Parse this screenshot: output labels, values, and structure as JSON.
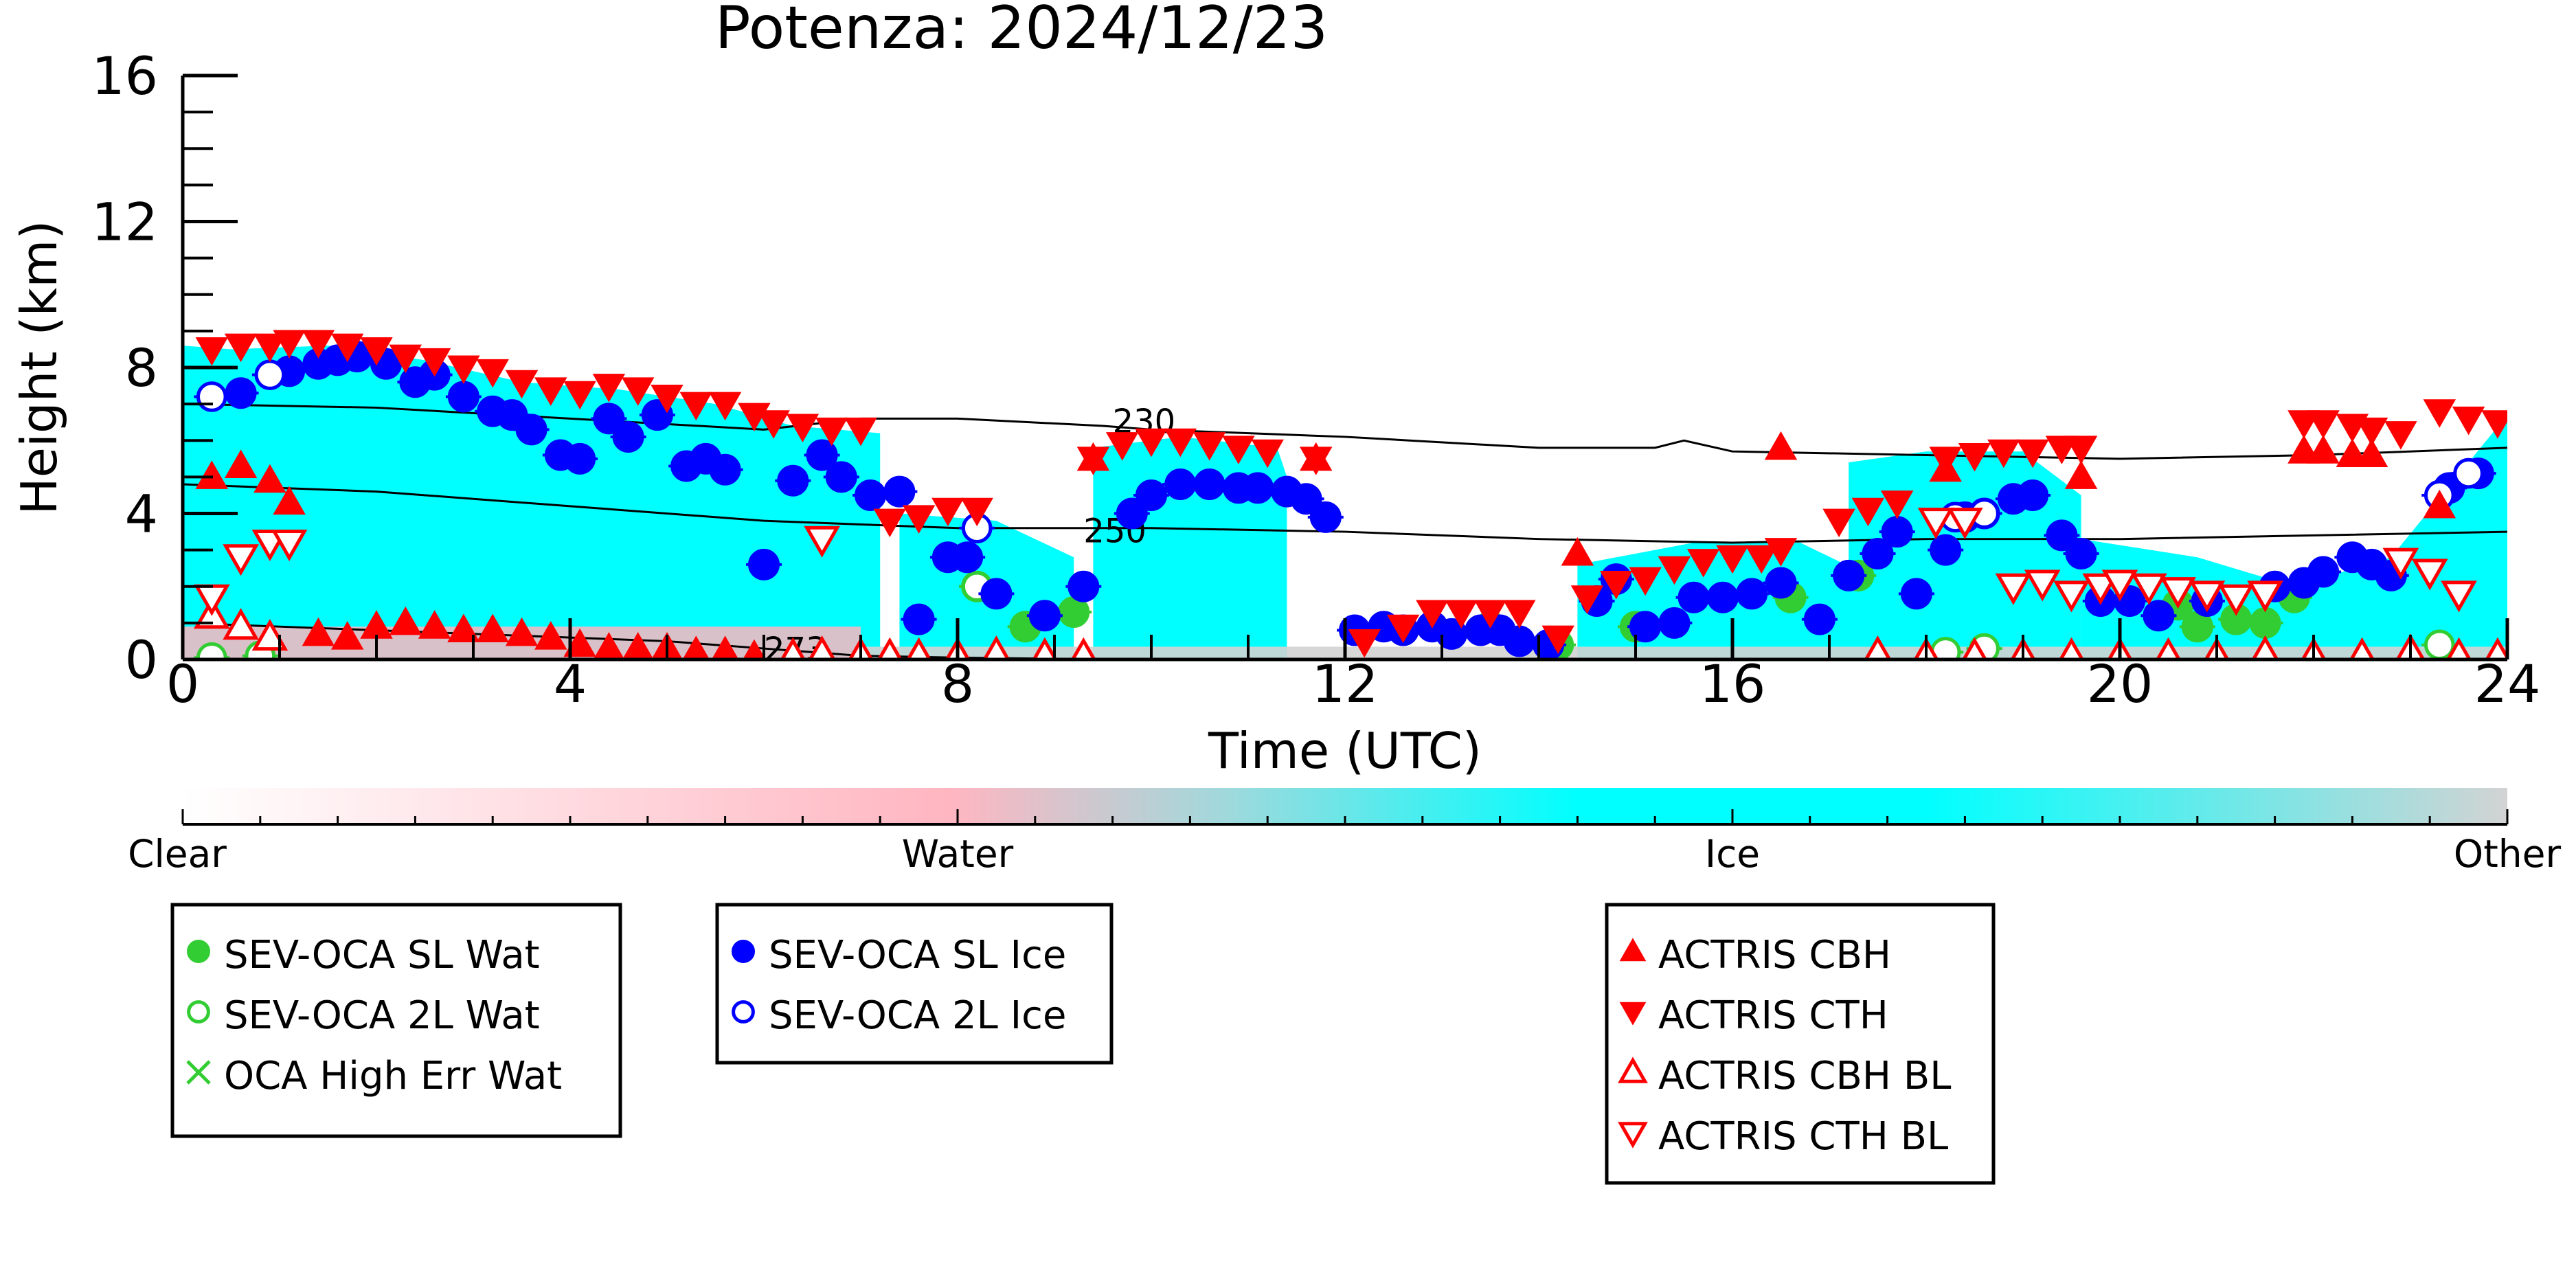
{
  "chart_data": {
    "type": "scatter",
    "title": "Potenza: 2024/12/23",
    "xlabel": "Time (UTC)",
    "ylabel": "Height (km)",
    "xlim": [
      0,
      24
    ],
    "ylim": [
      0,
      16
    ],
    "x_ticks": [
      0,
      4,
      8,
      12,
      16,
      20,
      24
    ],
    "y_ticks": [
      0,
      4,
      8,
      12,
      16
    ],
    "grid": false,
    "colors": {
      "clear": "#ffffff",
      "water": "#ffb6c1",
      "ice": "#00ffff",
      "other": "#d3d3d3",
      "sl_wat": "#32cd32",
      "sl_ice": "#0000ff",
      "actris": "#ff0000",
      "isotherm": "#000000"
    },
    "colorbar": {
      "labels": [
        "Clear",
        "Water",
        "Ice",
        "Other"
      ]
    },
    "isotherms": [
      {
        "label": "230",
        "x": [
          0,
          2,
          4,
          6,
          7,
          8,
          9.5,
          10,
          12,
          14,
          15.2,
          15.5,
          16,
          18,
          20,
          22,
          24
        ],
        "y": [
          7.0,
          6.9,
          6.6,
          6.3,
          6.6,
          6.6,
          6.4,
          6.3,
          6.1,
          5.8,
          5.8,
          6.0,
          5.7,
          5.6,
          5.5,
          5.6,
          5.8
        ]
      },
      {
        "label": "250",
        "x": [
          0,
          2,
          4,
          6,
          8,
          10,
          12,
          14,
          16,
          18,
          20,
          22,
          24
        ],
        "y": [
          4.8,
          4.6,
          4.2,
          3.8,
          3.6,
          3.6,
          3.5,
          3.3,
          3.2,
          3.3,
          3.3,
          3.4,
          3.5
        ]
      },
      {
        "label": "273",
        "x": [
          0,
          1,
          2,
          3,
          4,
          5,
          6,
          6.5,
          7,
          8,
          9,
          10,
          12,
          24
        ],
        "y": [
          1.0,
          0.9,
          0.8,
          0.7,
          0.6,
          0.5,
          0.3,
          0.2,
          0.1,
          0.05,
          0.02,
          0.01,
          0,
          0
        ]
      }
    ],
    "cloud_regions": [
      {
        "x": [
          0,
          0.5,
          1.5,
          2.5,
          3.5,
          4.5,
          5.5,
          6.3,
          7.2,
          7.2,
          0
        ],
        "top": [
          8.6,
          8.5,
          8.6,
          8.2,
          7.6,
          7.4,
          7.0,
          6.4,
          6.2,
          0,
          0
        ]
      },
      {
        "x": [
          7.4,
          8.4,
          9.2,
          9.2,
          8,
          7.4
        ],
        "top": [
          4.0,
          3.8,
          2.8,
          0,
          0,
          0
        ]
      },
      {
        "x": [
          9.4,
          10.3,
          11.3,
          11.4,
          11.4,
          9.4
        ],
        "top": [
          5.8,
          6.1,
          5.8,
          5.0,
          0,
          0
        ]
      },
      {
        "x": [
          14.4,
          15.6,
          16.7,
          17.4,
          17.4,
          14.4
        ],
        "top": [
          2.6,
          3.2,
          3.2,
          2.3,
          0,
          0
        ]
      },
      {
        "x": [
          17.2,
          18,
          19,
          19.6,
          19.6,
          17.2
        ],
        "top": [
          5.4,
          5.7,
          5.7,
          4.5,
          0,
          0
        ]
      },
      {
        "x": [
          19.6,
          20.8,
          21.8,
          22.8,
          24,
          24,
          19.6
        ],
        "top": [
          3.3,
          2.8,
          2.0,
          2.8,
          6.7,
          0,
          0
        ]
      }
    ],
    "series": [
      {
        "name": "SEV-OCA SL Wat",
        "marker": "filled-circle",
        "color": "#32cd32",
        "x": [
          8.2,
          8.7,
          9.2,
          13.5,
          14.2,
          15,
          16.6,
          17.3,
          20.6,
          20.8,
          21.2,
          21.5,
          21.8
        ],
        "y": [
          2.0,
          0.9,
          1.3,
          0.9,
          0.4,
          0.9,
          1.7,
          2.3,
          1.5,
          0.9,
          1.1,
          1.0,
          1.7
        ]
      },
      {
        "name": "SEV-OCA 2L Wat",
        "marker": "open-circle",
        "color": "#32cd32",
        "x": [
          0.3,
          0.8,
          8.2,
          18.2,
          18.6,
          23.3
        ],
        "y": [
          0.05,
          0.1,
          2.0,
          0.2,
          0.3,
          0.4
        ]
      },
      {
        "name": "OCA High Err Wat",
        "marker": "x",
        "color": "#32cd32",
        "x": [],
        "y": []
      },
      {
        "name": "SEV-OCA SL Ice",
        "marker": "filled-circle",
        "color": "#0000ff",
        "x": [
          0.6,
          1.1,
          1.4,
          1.6,
          1.8,
          2.1,
          2.4,
          2.6,
          2.9,
          3.2,
          3.4,
          3.6,
          3.9,
          4.1,
          4.4,
          4.6,
          4.9,
          5.2,
          5.4,
          5.6,
          6,
          6.3,
          6.6,
          6.8,
          7.1,
          7.4,
          7.6,
          7.9,
          8.1,
          8.4,
          8.9,
          9.3,
          9.8,
          10,
          10.3,
          10.6,
          10.9,
          11.1,
          11.4,
          11.6,
          11.8,
          12.1,
          12.4,
          12.6,
          12.9,
          13.1,
          13.4,
          13.6,
          13.8,
          14.1,
          14.6,
          14.8,
          15.1,
          15.4,
          15.6,
          15.9,
          16.2,
          16.5,
          16.9,
          17.2,
          17.5,
          17.7,
          17.9,
          18.2,
          18.4,
          18.6,
          18.9,
          19.1,
          19.4,
          19.6,
          19.8,
          20.1,
          20.4,
          20.9,
          21.6,
          21.9,
          22.1,
          22.4,
          22.6,
          22.8,
          23.4,
          23.7
        ],
        "y": [
          7.3,
          7.9,
          8.1,
          8.2,
          8.3,
          8.1,
          7.6,
          7.8,
          7.2,
          6.8,
          6.7,
          6.3,
          5.6,
          5.5,
          6.6,
          6.1,
          6.7,
          5.3,
          5.5,
          5.2,
          2.6,
          4.9,
          5.6,
          5.0,
          4.5,
          4.6,
          1.1,
          2.8,
          2.8,
          1.8,
          1.2,
          2.0,
          4.0,
          4.5,
          4.8,
          4.8,
          4.7,
          4.7,
          4.6,
          4.4,
          3.9,
          0.8,
          0.9,
          0.8,
          0.9,
          0.7,
          0.8,
          0.8,
          0.5,
          0.4,
          1.6,
          2.2,
          0.9,
          1.0,
          1.7,
          1.7,
          1.8,
          2.1,
          1.1,
          2.3,
          2.9,
          3.5,
          1.8,
          3.0,
          3.9,
          4.0,
          4.4,
          4.5,
          3.4,
          2.9,
          1.6,
          1.6,
          1.2,
          1.6,
          2.0,
          2.1,
          2.4,
          2.8,
          2.6,
          2.3,
          4.7,
          5.1
        ]
      },
      {
        "name": "SEV-OCA 2L Ice",
        "marker": "open-circle",
        "color": "#0000ff",
        "x": [
          0.3,
          0.9,
          8.2,
          18.3,
          18.6,
          23.3,
          23.6
        ],
        "y": [
          7.2,
          7.8,
          3.6,
          3.9,
          4.0,
          4.5,
          5.1
        ]
      },
      {
        "name": "ACTRIS CBH",
        "marker": "filled-triangle-up",
        "color": "#ff0000",
        "x": [
          0.3,
          0.6,
          0.9,
          1.1,
          1.4,
          1.7,
          2.0,
          2.3,
          2.6,
          2.9,
          3.2,
          3.5,
          3.8,
          4.1,
          4.4,
          4.7,
          5.0,
          5.3,
          5.6,
          5.9,
          9.4,
          11.7,
          14.4,
          16.5,
          18.2,
          19.6,
          21.9,
          22.1,
          22.4,
          22.6,
          23.3
        ],
        "y": [
          5.0,
          5.3,
          4.9,
          4.3,
          0.7,
          0.6,
          0.9,
          1.0,
          0.9,
          0.8,
          0.8,
          0.7,
          0.6,
          0.4,
          0.3,
          0.3,
          0.3,
          0.2,
          0.2,
          0.1,
          5.5,
          5.5,
          2.9,
          5.8,
          5.2,
          5.0,
          5.7,
          5.7,
          5.6,
          5.6,
          4.2
        ]
      },
      {
        "name": "ACTRIS CTH",
        "marker": "filled-triangle-down",
        "color": "#ff0000",
        "x": [
          0.3,
          0.6,
          0.9,
          1.1,
          1.4,
          1.7,
          2.0,
          2.3,
          2.6,
          2.9,
          3.2,
          3.5,
          3.8,
          4.1,
          4.4,
          4.7,
          5.0,
          5.3,
          5.6,
          5.9,
          6.1,
          6.4,
          6.7,
          7.0,
          7.3,
          7.6,
          7.9,
          8.2,
          9.4,
          9.7,
          10.0,
          10.3,
          10.6,
          10.9,
          11.2,
          11.7,
          12.2,
          12.6,
          12.9,
          13.2,
          13.5,
          13.8,
          14.2,
          14.5,
          14.8,
          15.1,
          15.4,
          15.7,
          16.0,
          16.3,
          16.5,
          17.1,
          17.4,
          17.7,
          18.2,
          18.5,
          18.8,
          19.1,
          19.4,
          19.6,
          21.9,
          22.1,
          22.4,
          22.6,
          22.9,
          23.3,
          23.6,
          23.9
        ],
        "y": [
          8.5,
          8.6,
          8.6,
          8.7,
          8.7,
          8.6,
          8.5,
          8.3,
          8.2,
          8.0,
          7.9,
          7.6,
          7.4,
          7.3,
          7.5,
          7.4,
          7.2,
          7.0,
          7.0,
          6.7,
          6.5,
          6.4,
          6.3,
          6.3,
          3.8,
          3.9,
          4.1,
          4.1,
          5.5,
          5.9,
          6.0,
          6.0,
          5.9,
          5.8,
          5.7,
          5.5,
          0.5,
          0.9,
          1.3,
          1.3,
          1.3,
          1.3,
          0.6,
          1.7,
          2.1,
          2.2,
          2.5,
          2.7,
          2.8,
          2.8,
          3.0,
          3.8,
          4.1,
          4.3,
          5.5,
          5.6,
          5.7,
          5.7,
          5.8,
          5.8,
          6.5,
          6.5,
          6.4,
          6.3,
          6.2,
          6.8,
          6.6,
          6.5
        ]
      },
      {
        "name": "ACTRIS CBH BL",
        "marker": "open-triangle-up",
        "color": "#ff0000",
        "x": [
          0.3,
          0.6,
          0.9,
          6.3,
          6.6,
          7.0,
          7.3,
          7.6,
          8.0,
          8.4,
          8.9,
          9.3,
          17.5,
          18.0,
          18.5,
          19.0,
          19.5,
          20.0,
          20.5,
          21.0,
          21.5,
          22.0,
          22.5,
          23.0,
          23.5,
          23.9
        ],
        "y": [
          1.2,
          0.9,
          0.6,
          0.1,
          0.15,
          0.1,
          0.1,
          0.1,
          0.1,
          0.15,
          0.1,
          0.1,
          0.15,
          0.1,
          0.1,
          0.1,
          0.1,
          0.1,
          0.1,
          0.1,
          0.15,
          0.1,
          0.1,
          0.2,
          0.1,
          0.1
        ]
      },
      {
        "name": "ACTRIS CTH BL",
        "marker": "open-triangle-down",
        "color": "#ff0000",
        "x": [
          0.3,
          0.6,
          0.9,
          1.1,
          6.6,
          18.1,
          18.4,
          18.9,
          19.2,
          19.5,
          19.8,
          20.0,
          20.3,
          20.6,
          20.9,
          21.2,
          21.5,
          22.9,
          23.2,
          23.5
        ],
        "y": [
          1.7,
          2.8,
          3.2,
          3.2,
          3.3,
          3.8,
          3.8,
          2.0,
          2.1,
          1.8,
          2.0,
          2.1,
          2.0,
          1.9,
          1.8,
          1.7,
          1.8,
          2.7,
          2.4,
          1.8
        ]
      }
    ]
  },
  "legends": [
    {
      "items": [
        {
          "label": "SEV-OCA SL Wat",
          "marker": "filled-circle",
          "color": "#32cd32"
        },
        {
          "label": "SEV-OCA 2L Wat",
          "marker": "open-circle",
          "color": "#32cd32"
        },
        {
          "label": "OCA High Err Wat",
          "marker": "x",
          "color": "#32cd32"
        }
      ]
    },
    {
      "items": [
        {
          "label": "SEV-OCA SL Ice",
          "marker": "filled-circle",
          "color": "#0000ff"
        },
        {
          "label": "SEV-OCA 2L Ice",
          "marker": "open-circle",
          "color": "#0000ff"
        }
      ]
    },
    {
      "items": [
        {
          "label": "ACTRIS CBH",
          "marker": "filled-triangle-up",
          "color": "#ff0000"
        },
        {
          "label": "ACTRIS CTH",
          "marker": "filled-triangle-down",
          "color": "#ff0000"
        },
        {
          "label": "ACTRIS CBH BL",
          "marker": "open-triangle-up",
          "color": "#ff0000"
        },
        {
          "label": "ACTRIS CTH BL",
          "marker": "open-triangle-down",
          "color": "#ff0000"
        }
      ]
    }
  ]
}
